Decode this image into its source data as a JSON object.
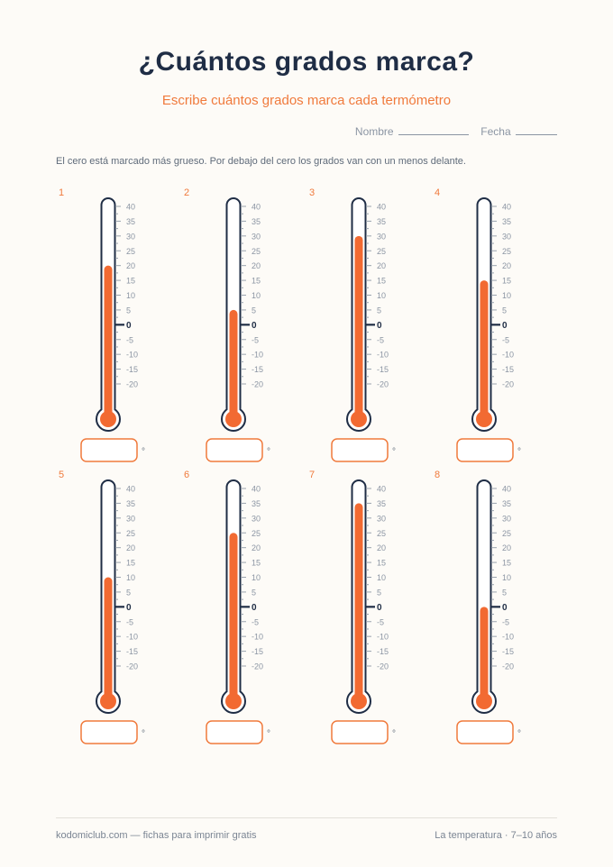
{
  "header": {
    "title": "¿Cuántos grados marca?",
    "subtitle": "Escribe cuántos grados marca cada termómetro",
    "name_label": "Nombre",
    "date_label": "Fecha"
  },
  "instructions": "El cero está marcado más grueso. Por debajo del cero los grados van con un menos delante.",
  "scale": {
    "min": -20,
    "max": 40,
    "step": 5,
    "zero_label": "0"
  },
  "degree_symbol": "°",
  "thermometers": [
    {
      "number": "1",
      "reading": 20
    },
    {
      "number": "2",
      "reading": 5
    },
    {
      "number": "3",
      "reading": 30
    },
    {
      "number": "4",
      "reading": 15
    },
    {
      "number": "5",
      "reading": 10
    },
    {
      "number": "6",
      "reading": 25
    },
    {
      "number": "7",
      "reading": 35
    },
    {
      "number": "8",
      "reading": 0
    }
  ],
  "colors": {
    "mercury": "#f26a32",
    "outline": "#1f2d45",
    "accent": "#f07a3c",
    "tick": "#9aa3ae"
  },
  "footer": {
    "left": "kodomiclub.com — fichas para imprimir gratis",
    "right": "La temperatura · 7–10 años"
  }
}
